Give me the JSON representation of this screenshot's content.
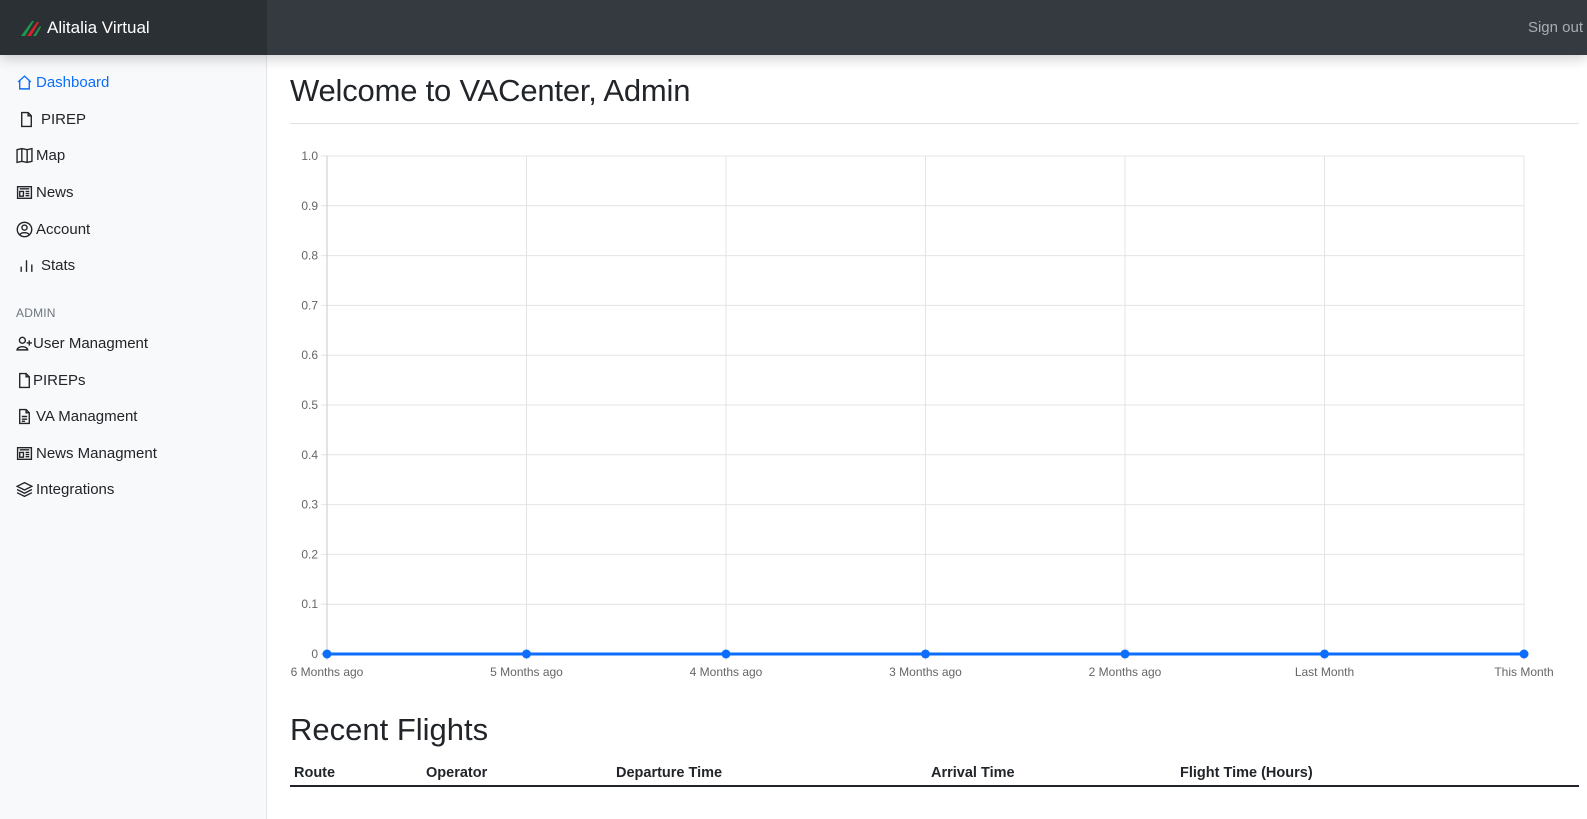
{
  "app": {
    "brand": "Alitalia Virtual",
    "sign_out": "Sign out"
  },
  "sidebar": {
    "items": [
      {
        "label": "Dashboard",
        "icon": "home-icon",
        "active": true
      },
      {
        "label": "PIREP",
        "icon": "file-icon"
      },
      {
        "label": "Map",
        "icon": "map-icon"
      },
      {
        "label": "News",
        "icon": "newspaper-icon"
      },
      {
        "label": "Account",
        "icon": "user-circle-icon"
      },
      {
        "label": "Stats",
        "icon": "bar-chart-icon"
      }
    ],
    "admin_heading": "ADMIN",
    "admin_items": [
      {
        "label": "User Managment",
        "icon": "user-plus-icon"
      },
      {
        "label": "PIREPs",
        "icon": "file-icon"
      },
      {
        "label": "VA Managment",
        "icon": "file-text-icon"
      },
      {
        "label": "News Managment",
        "icon": "newspaper-icon"
      },
      {
        "label": "Integrations",
        "icon": "layers-icon"
      }
    ]
  },
  "main": {
    "title": "Welcome to VACenter, Admin",
    "recent_title": "Recent Flights",
    "table_columns": [
      "Route",
      "Operator",
      "Departure Time",
      "Arrival Time",
      "Flight Time (Hours)"
    ]
  },
  "chart_data": {
    "type": "line",
    "categories": [
      "6 Months ago",
      "5 Months ago",
      "4 Months ago",
      "3 Months ago",
      "2 Months ago",
      "Last Month",
      "This Month"
    ],
    "series": [
      {
        "values": [
          0,
          0,
          0,
          0,
          0,
          0,
          0
        ],
        "color": "#0d6efd"
      }
    ],
    "ylim": [
      0,
      1
    ],
    "yticks": [
      "0",
      "0.1",
      "0.2",
      "0.3",
      "0.4",
      "0.5",
      "0.6",
      "0.7",
      "0.8",
      "0.9",
      "1.0"
    ],
    "grid": true,
    "title": "",
    "xlabel": "",
    "ylabel": ""
  }
}
